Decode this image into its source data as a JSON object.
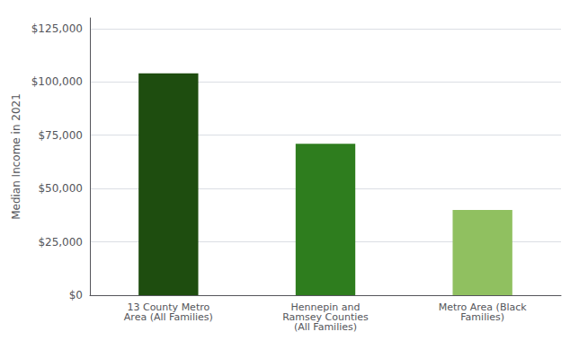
{
  "chart_data": {
    "type": "bar",
    "categories": [
      "13 County Metro\nArea (All Families)",
      "Hennepin and\nRamsey Counties\n(All Families)",
      "Metro Area (Black\nFamilies)"
    ],
    "values": [
      104000,
      71000,
      40000
    ],
    "colors": [
      "#1e4d0f",
      "#2e7d1e",
      "#90c060"
    ],
    "ylabel": "Median Income in 2021",
    "ylim": [
      0,
      130000
    ],
    "yticks": [
      {
        "value": 0,
        "label": "$0"
      },
      {
        "value": 25000,
        "label": "$25,000"
      },
      {
        "value": 50000,
        "label": "$50,000"
      },
      {
        "value": 75000,
        "label": "$75,000"
      },
      {
        "value": 100000,
        "label": "$100,000"
      },
      {
        "value": 125000,
        "label": "$125,000"
      }
    ],
    "grid": true
  }
}
